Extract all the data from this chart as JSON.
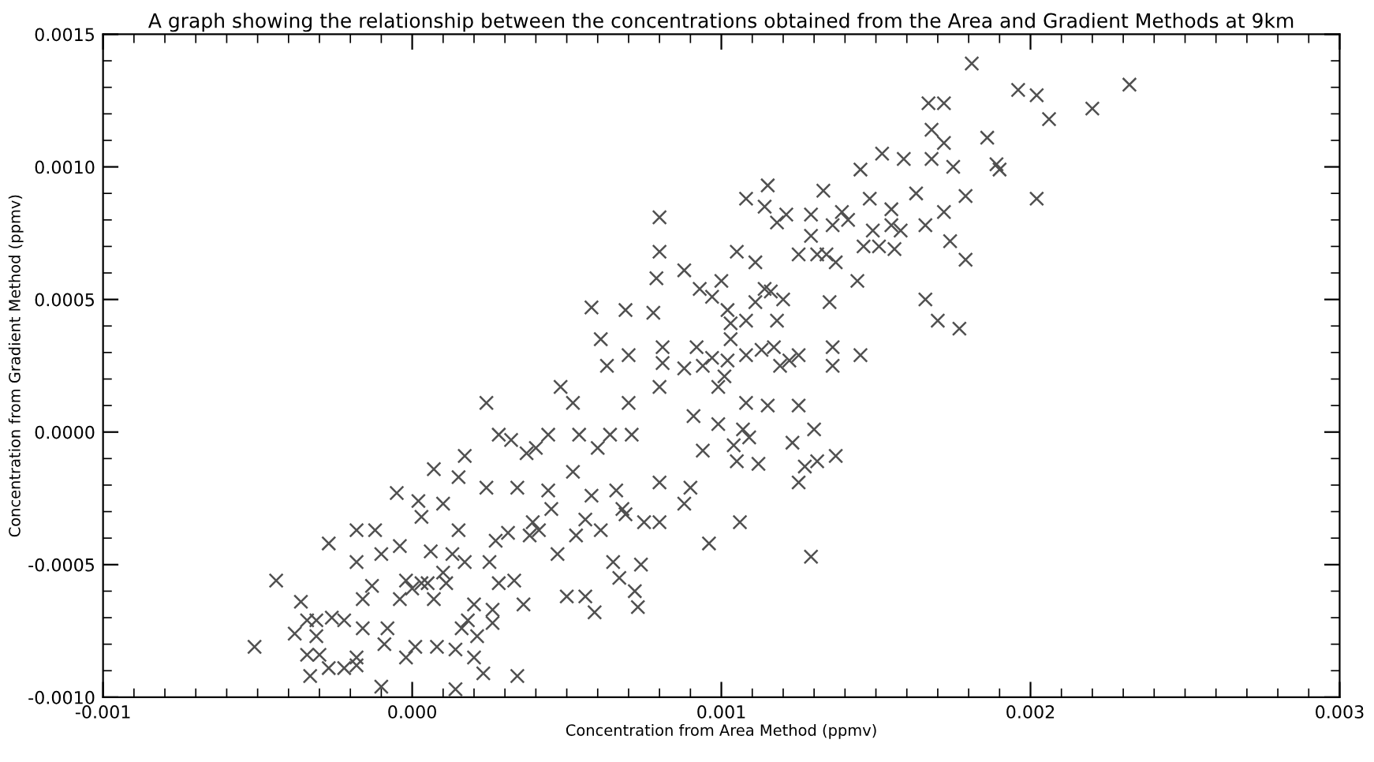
{
  "chart_data": {
    "type": "scatter",
    "title": "A graph showing the relationship between the concentrations obtained from the Area and Gradient Methods at 9km",
    "xlabel": "Concentration from Area Method (ppmv)",
    "ylabel": "Concentration from Gradient Method (ppmv)",
    "xlim": [
      -0.001,
      0.003
    ],
    "ylim": [
      -0.001,
      0.0015
    ],
    "xticks": [
      {
        "value": -0.001,
        "label": "-0.001"
      },
      {
        "value": 0,
        "label": "0.000"
      },
      {
        "value": 0.001,
        "label": "0.001"
      },
      {
        "value": 0.002,
        "label": "0.002"
      },
      {
        "value": 0.003,
        "label": "0.003"
      }
    ],
    "yticks": [
      {
        "value": -0.001,
        "label": "-0.0010"
      },
      {
        "value": -0.0005,
        "label": "-0.0005"
      },
      {
        "value": 0,
        "label": "0.0000"
      },
      {
        "value": 0.0005,
        "label": "0.0005"
      },
      {
        "value": 0.001,
        "label": "0.0010"
      },
      {
        "value": 0.0015,
        "label": "0.0015"
      }
    ],
    "grid": false,
    "marker": "cross",
    "series": [
      {
        "color": "#505050",
        "x": [
          -0.00051,
          -0.00044,
          -0.00036,
          -0.00038,
          -0.00034,
          -0.00031,
          -0.00031,
          -0.00034,
          -0.0003,
          -0.00033,
          -0.00027,
          -0.00027,
          -0.00026,
          -0.00022,
          -0.00022,
          -0.00018,
          -0.00018,
          -0.00018,
          -0.00018,
          -0.00016,
          -0.00016,
          -0.00012,
          -0.00013,
          -0.0001,
          -0.0001,
          -8e-05,
          -9e-05,
          -5e-05,
          -4e-05,
          -4e-05,
          -2e-05,
          -2e-05,
          0.0,
          1e-05,
          2e-05,
          3e-05,
          3e-05,
          5e-05,
          6e-05,
          7e-05,
          7e-05,
          8e-05,
          0.0001,
          0.0001,
          0.00011,
          0.00013,
          0.00014,
          0.00014,
          0.00015,
          0.00015,
          0.00017,
          0.00017,
          0.00016,
          0.00018,
          0.0002,
          0.0002,
          0.00021,
          0.00023,
          0.00024,
          0.00024,
          0.00025,
          0.00026,
          0.00026,
          0.00027,
          0.00028,
          0.00028,
          0.00031,
          0.00032,
          0.00033,
          0.00034,
          0.00034,
          0.00036,
          0.00037,
          0.00038,
          0.00039,
          0.0004,
          0.00041,
          0.00044,
          0.00044,
          0.00045,
          0.00047,
          0.00048,
          0.0005,
          0.00052,
          0.00052,
          0.00053,
          0.00056,
          0.00054,
          0.00056,
          0.00058,
          0.00058,
          0.00059,
          0.0006,
          0.00061,
          0.00061,
          0.00063,
          0.00064,
          0.00065,
          0.00066,
          0.00067,
          0.00068,
          0.00069,
          0.00069,
          0.0007,
          0.0007,
          0.00071,
          0.00072,
          0.00073,
          0.00074,
          0.00075,
          0.00078,
          0.00079,
          0.0008,
          0.0008,
          0.0008,
          0.0008,
          0.0008,
          0.00081,
          0.00081,
          0.00088,
          0.00088,
          0.00088,
          0.0009,
          0.00091,
          0.00092,
          0.00093,
          0.00094,
          0.00094,
          0.00096,
          0.00097,
          0.00097,
          0.00099,
          0.00099,
          0.001,
          0.00101,
          0.00102,
          0.00102,
          0.00103,
          0.00103,
          0.00104,
          0.00105,
          0.00105,
          0.00106,
          0.00107,
          0.00108,
          0.00108,
          0.00108,
          0.00108,
          0.00109,
          0.00111,
          0.00111,
          0.00112,
          0.00113,
          0.00114,
          0.00114,
          0.00115,
          0.00115,
          0.00116,
          0.00117,
          0.00118,
          0.00118,
          0.00119,
          0.0012,
          0.00121,
          0.00122,
          0.00123,
          0.00125,
          0.00125,
          0.00125,
          0.00125,
          0.00127,
          0.00129,
          0.00129,
          0.00129,
          0.0013,
          0.00131,
          0.00131,
          0.00133,
          0.00134,
          0.00135,
          0.00136,
          0.00136,
          0.00136,
          0.00137,
          0.00137,
          0.00139,
          0.00141,
          0.00144,
          0.00145,
          0.00145,
          0.00146,
          0.00148,
          0.00149,
          0.00151,
          0.00152,
          0.00155,
          0.00155,
          0.00156,
          0.00158,
          0.00159,
          0.00163,
          0.00166,
          0.00166,
          0.00167,
          0.00168,
          0.00168,
          0.0017,
          0.00172,
          0.00172,
          0.00172,
          0.00174,
          0.00175,
          0.00177,
          0.00179,
          0.00179,
          0.00181,
          0.00186,
          0.00189,
          0.0019,
          0.00196,
          0.00202,
          0.00202,
          0.00206,
          0.0022,
          0.00232
        ],
        "values": [
          -0.00081,
          -0.00056,
          -0.00064,
          -0.00076,
          -0.00071,
          -0.00071,
          -0.00077,
          -0.00084,
          -0.00084,
          -0.00092,
          -0.00042,
          -0.00089,
          -0.0007,
          -0.00071,
          -0.00089,
          -0.00088,
          -0.00085,
          -0.00037,
          -0.00049,
          -0.00074,
          -0.00063,
          -0.00037,
          -0.00058,
          -0.00046,
          -0.00096,
          -0.00074,
          -0.0008,
          -0.00023,
          -0.00043,
          -0.00063,
          -0.00085,
          -0.00056,
          -0.00059,
          -0.00081,
          -0.00026,
          -0.00057,
          -0.00032,
          -0.00057,
          -0.00045,
          -0.00014,
          -0.00063,
          -0.00081,
          -0.00027,
          -0.00053,
          -0.00057,
          -0.00046,
          -0.00097,
          -0.00082,
          -0.00017,
          -0.00037,
          -9e-05,
          -0.00049,
          -0.00074,
          -0.00071,
          -0.00065,
          -0.00085,
          -0.00077,
          -0.00091,
          0.00011,
          -0.00021,
          -0.00049,
          -0.00067,
          -0.00072,
          -0.00041,
          -0.00057,
          -1e-05,
          -0.00038,
          -3e-05,
          -0.00056,
          -0.00021,
          -0.00092,
          -0.00065,
          -8e-05,
          -0.00039,
          -0.00034,
          -6e-05,
          -0.00037,
          -1e-05,
          -0.00022,
          -0.00029,
          -0.00046,
          0.00017,
          -0.00062,
          -0.00015,
          0.00011,
          -0.00039,
          -0.00062,
          -1e-05,
          -0.00033,
          0.00047,
          -0.00024,
          -0.00068,
          -6e-05,
          0.00035,
          -0.00037,
          0.00025,
          -1e-05,
          -0.00049,
          -0.00022,
          -0.00055,
          -0.00029,
          -0.00031,
          0.00046,
          0.00029,
          0.00011,
          -1e-05,
          -0.0006,
          -0.00066,
          -0.0005,
          -0.00034,
          0.00045,
          0.00058,
          0.00068,
          0.00081,
          0.00017,
          -0.00019,
          -0.00034,
          0.00026,
          0.00032,
          0.00061,
          0.00024,
          -0.00027,
          -0.00021,
          6e-05,
          0.00032,
          0.00054,
          -7e-05,
          0.00025,
          -0.00042,
          0.00051,
          0.00028,
          0.00017,
          3e-05,
          0.00057,
          0.00021,
          0.00046,
          0.00027,
          0.00035,
          0.00041,
          -5e-05,
          0.00068,
          -0.00011,
          -0.00034,
          1e-05,
          0.00011,
          0.00088,
          0.00042,
          0.00029,
          -2e-05,
          0.00064,
          0.00049,
          -0.00012,
          0.00031,
          0.00054,
          0.00085,
          0.00093,
          0.0001,
          0.00053,
          0.00032,
          0.00079,
          0.00042,
          0.00025,
          0.0005,
          0.00082,
          0.00027,
          -4e-05,
          0.00067,
          0.00029,
          -0.00019,
          0.0001,
          -0.00013,
          0.00082,
          -0.00047,
          0.00074,
          1e-05,
          0.00067,
          -0.00011,
          0.00091,
          0.00067,
          0.00049,
          0.00032,
          0.00078,
          0.00025,
          -9e-05,
          0.00064,
          0.00083,
          0.0008,
          0.00057,
          0.00099,
          0.00029,
          0.0007,
          0.00088,
          0.00076,
          0.0007,
          0.00105,
          0.00084,
          0.00078,
          0.00069,
          0.00076,
          0.00103,
          0.0009,
          0.00078,
          0.0005,
          0.00124,
          0.00114,
          0.00103,
          0.00042,
          0.00124,
          0.00083,
          0.00109,
          0.00072,
          0.001,
          0.00039,
          0.00089,
          0.00065,
          0.00139,
          0.00111,
          0.00101,
          0.00099,
          0.00129,
          0.00127,
          0.00088,
          0.00118,
          0.00122,
          0.00131
        ]
      }
    ]
  }
}
